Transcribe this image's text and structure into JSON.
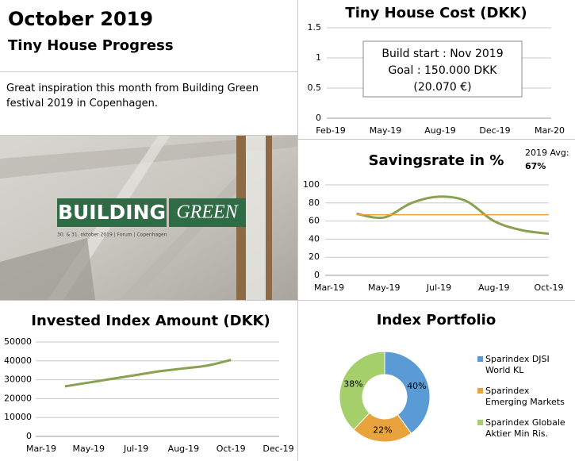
{
  "header": {
    "title": "October 2019",
    "subtitle": "Tiny House Progress"
  },
  "description": "Great inspiration this month from Building Green festival 2019 in Copenhagen.",
  "image": {
    "logo_left": "BUILDING",
    "logo_right": "GREEN",
    "caption": "30. & 31. oktober 2019 | Forum | Copenhagen"
  },
  "chart_data": [
    {
      "type": "line",
      "title": "Tiny House Cost (DKK)",
      "categories": [
        "Feb-19",
        "May-19",
        "Aug-19",
        "Dec-19",
        "Mar-20"
      ],
      "series": [],
      "annotations": [
        "Build start : Nov 2019",
        "Goal : 150.000 DKK",
        "(20.070 €)"
      ],
      "ylim": [
        0,
        1.5
      ],
      "yticks": [
        0,
        0.5,
        1,
        1.5
      ],
      "grid": true
    },
    {
      "type": "line",
      "title": "Savingsrate in %",
      "categories": [
        "Mar-19",
        null,
        "May-19",
        null,
        "Jul-19",
        null,
        "Aug-19",
        null,
        "Oct-19"
      ],
      "series": [
        {
          "color": "#8aa052",
          "values": [
            null,
            68,
            64,
            80,
            87,
            82,
            60,
            50,
            46
          ]
        }
      ],
      "average": {
        "label": "2019 Avg:",
        "value": 67,
        "value_label": "67%",
        "color": "#e8a33d"
      },
      "ylim": [
        0,
        100
      ],
      "yticks": [
        0,
        20,
        40,
        60,
        80,
        100
      ],
      "grid": true
    },
    {
      "type": "line",
      "title": "Invested Index Amount (DKK)",
      "categories": [
        "Mar-19",
        null,
        "May-19",
        null,
        "Jul-19",
        null,
        "Aug-19",
        null,
        "Oct-19",
        null,
        "Dec-19"
      ],
      "series": [
        {
          "color": "#8aa052",
          "values": [
            null,
            26500,
            28500,
            30500,
            32500,
            34500,
            36000,
            37500,
            40500,
            null,
            null
          ]
        }
      ],
      "ylim": [
        0,
        50000
      ],
      "yticks": [
        0,
        10000,
        20000,
        30000,
        40000,
        50000
      ],
      "grid": true
    },
    {
      "type": "pie",
      "title": "Index Portfolio",
      "donut": true,
      "categories": [
        "Sparindex DJSI World KL",
        "Sparindex Emerging Markets",
        "Sparindex Globale Aktier Min Ris."
      ],
      "values": [
        40,
        22,
        38
      ],
      "value_labels": [
        "40%",
        "22%",
        "38%"
      ],
      "colors": [
        "#5b9bd5",
        "#e8a33d",
        "#a5cf6a"
      ]
    }
  ]
}
